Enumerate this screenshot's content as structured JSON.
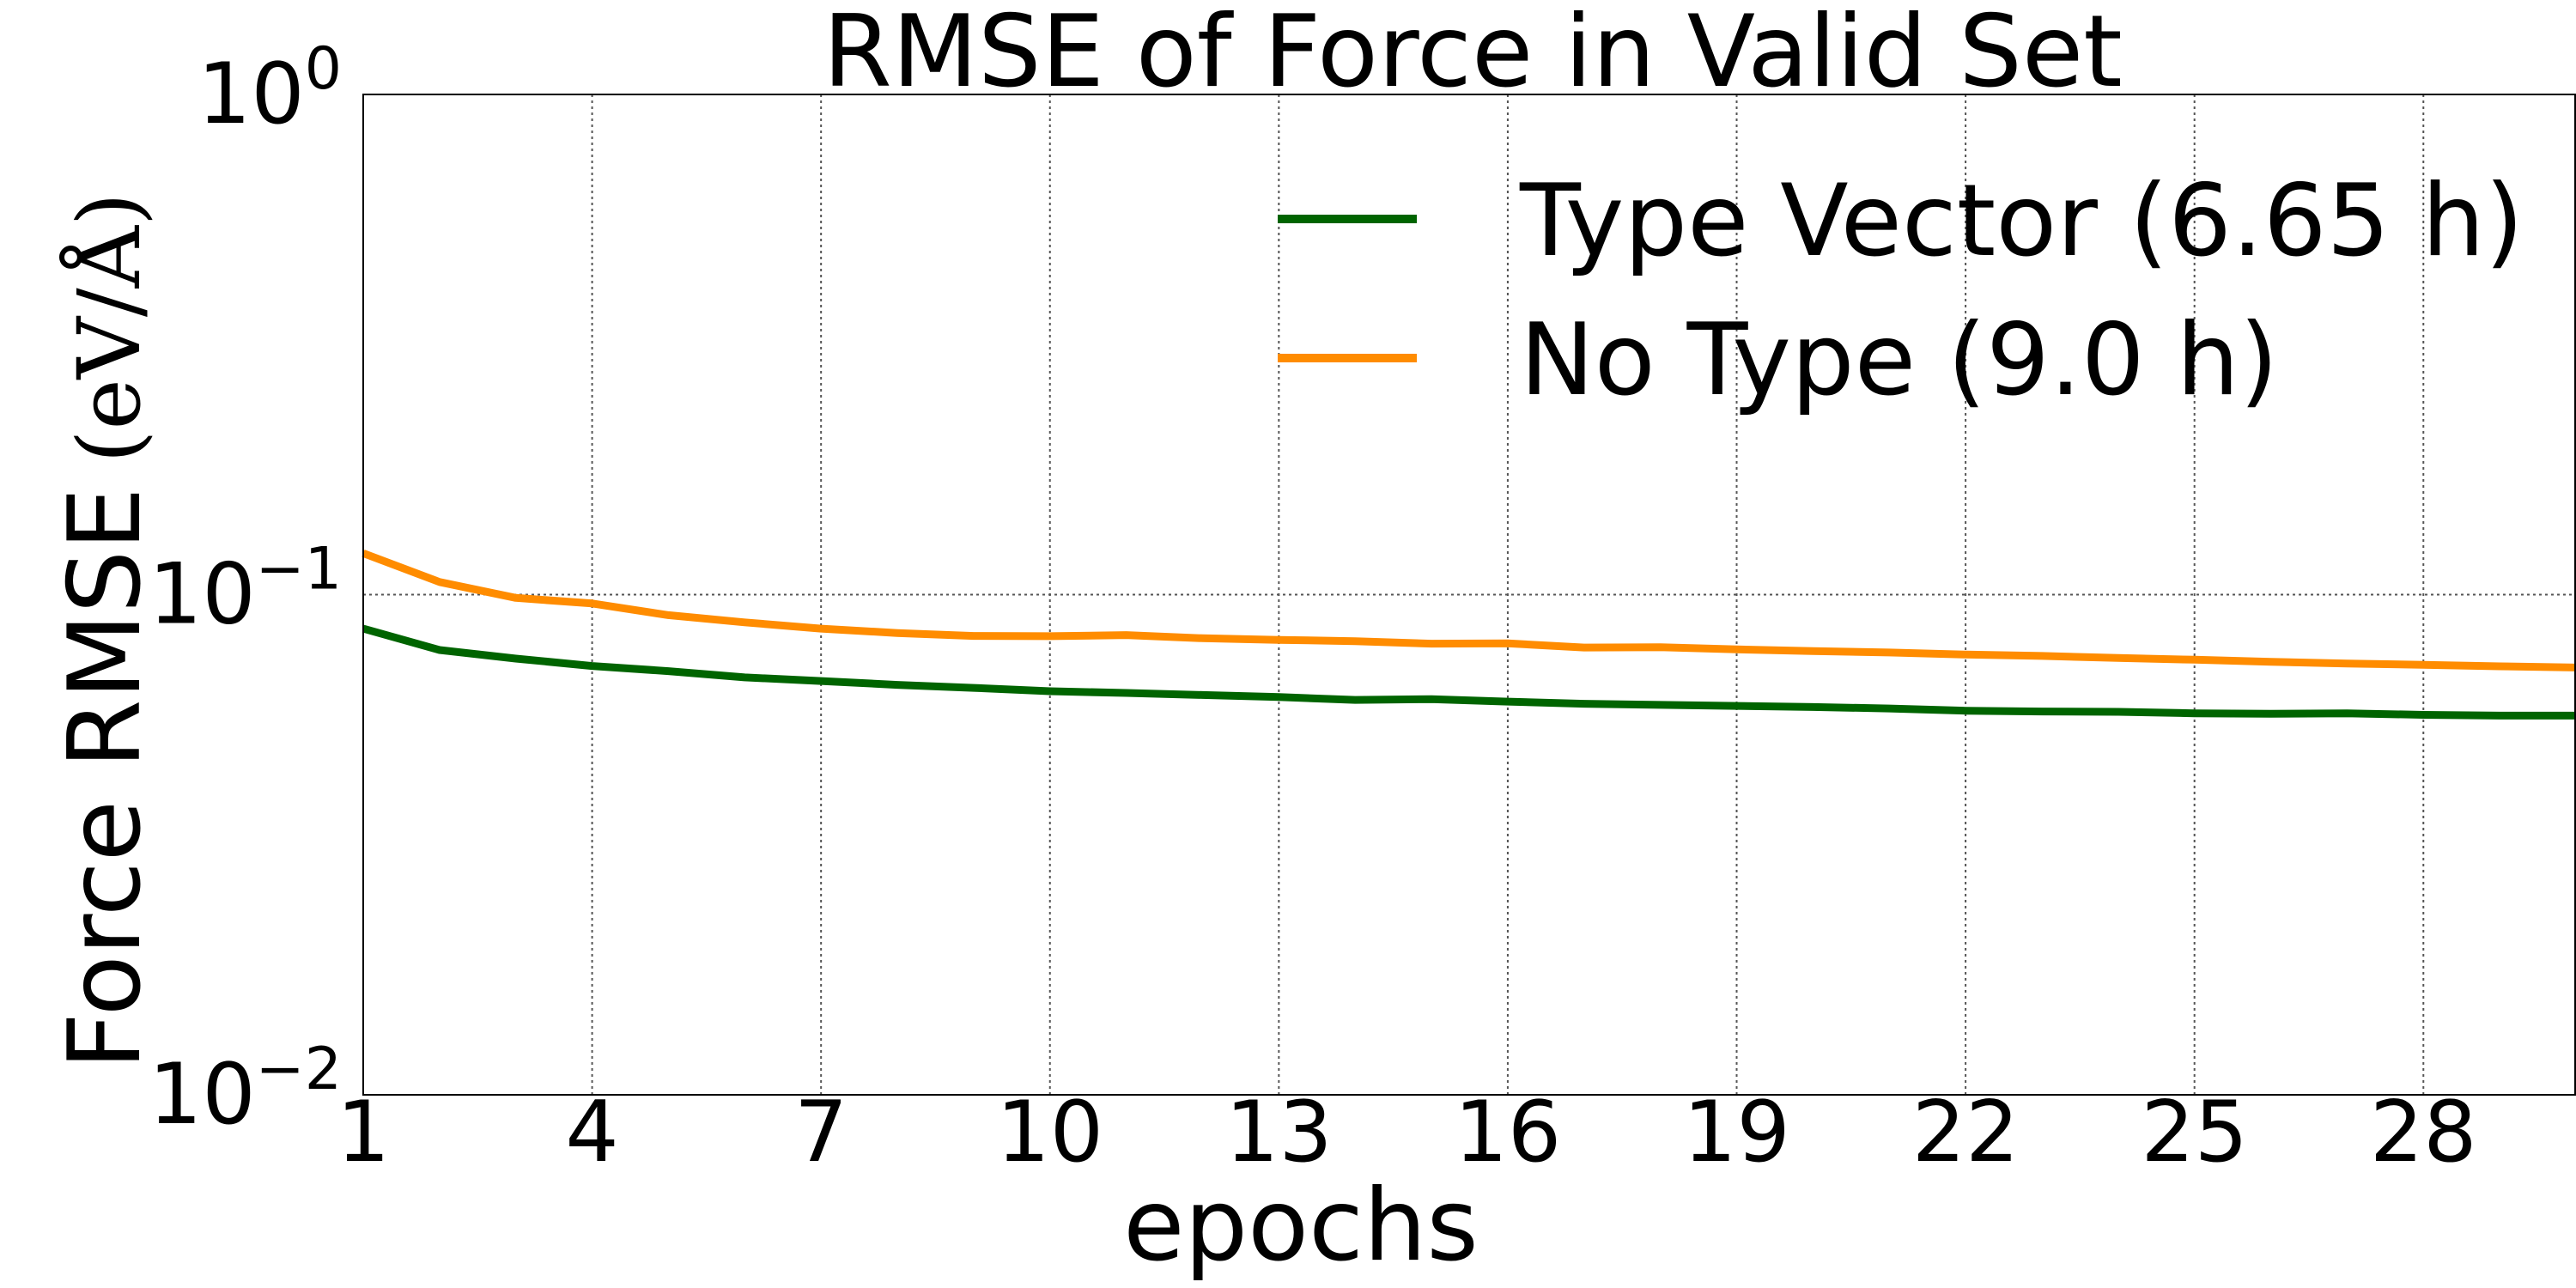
{
  "chart_data": {
    "type": "line",
    "title": "RMSE of Force in Valid Set",
    "xlabel": "epochs",
    "ylabel": "Force RMSE",
    "ylabel_unit": "(eV/Å)",
    "xlim": [
      1,
      30
    ],
    "ylim": [
      0.01,
      1
    ],
    "yscale": "log",
    "grid": true,
    "legend_position": "upper-right",
    "x_ticks": [
      1,
      4,
      7,
      10,
      13,
      16,
      19,
      22,
      25,
      28
    ],
    "y_ticks": [
      {
        "value": 1,
        "base": "10",
        "exp": "0"
      },
      {
        "value": 0.1,
        "base": "10",
        "exp": "−1"
      },
      {
        "value": 0.01,
        "base": "10",
        "exp": "−2"
      }
    ],
    "x": [
      1,
      2,
      3,
      4,
      5,
      6,
      7,
      8,
      9,
      10,
      11,
      12,
      13,
      14,
      15,
      16,
      17,
      18,
      19,
      20,
      21,
      22,
      23,
      24,
      25,
      26,
      27,
      28,
      29,
      30
    ],
    "series": [
      {
        "name": "Type Vector (6.65 h)",
        "color": "#006400",
        "values": [
          0.0855,
          0.0775,
          0.0745,
          0.072,
          0.0703,
          0.0683,
          0.0672,
          0.066,
          0.0651,
          0.0641,
          0.0636,
          0.063,
          0.0624,
          0.0616,
          0.0618,
          0.0611,
          0.0605,
          0.0602,
          0.0599,
          0.0596,
          0.0592,
          0.0586,
          0.0584,
          0.0583,
          0.0579,
          0.0578,
          0.0579,
          0.0575,
          0.0573,
          0.0573
        ]
      },
      {
        "name": "No Type (9.0 h)",
        "color": "#FF8C00",
        "values": [
          0.121,
          0.106,
          0.0985,
          0.096,
          0.091,
          0.088,
          0.0855,
          0.0838,
          0.0827,
          0.0826,
          0.083,
          0.0818,
          0.0812,
          0.0807,
          0.0798,
          0.0799,
          0.0784,
          0.0785,
          0.0777,
          0.0771,
          0.0766,
          0.0759,
          0.0754,
          0.0747,
          0.0741,
          0.0734,
          0.0728,
          0.0724,
          0.0719,
          0.0715
        ]
      }
    ]
  }
}
